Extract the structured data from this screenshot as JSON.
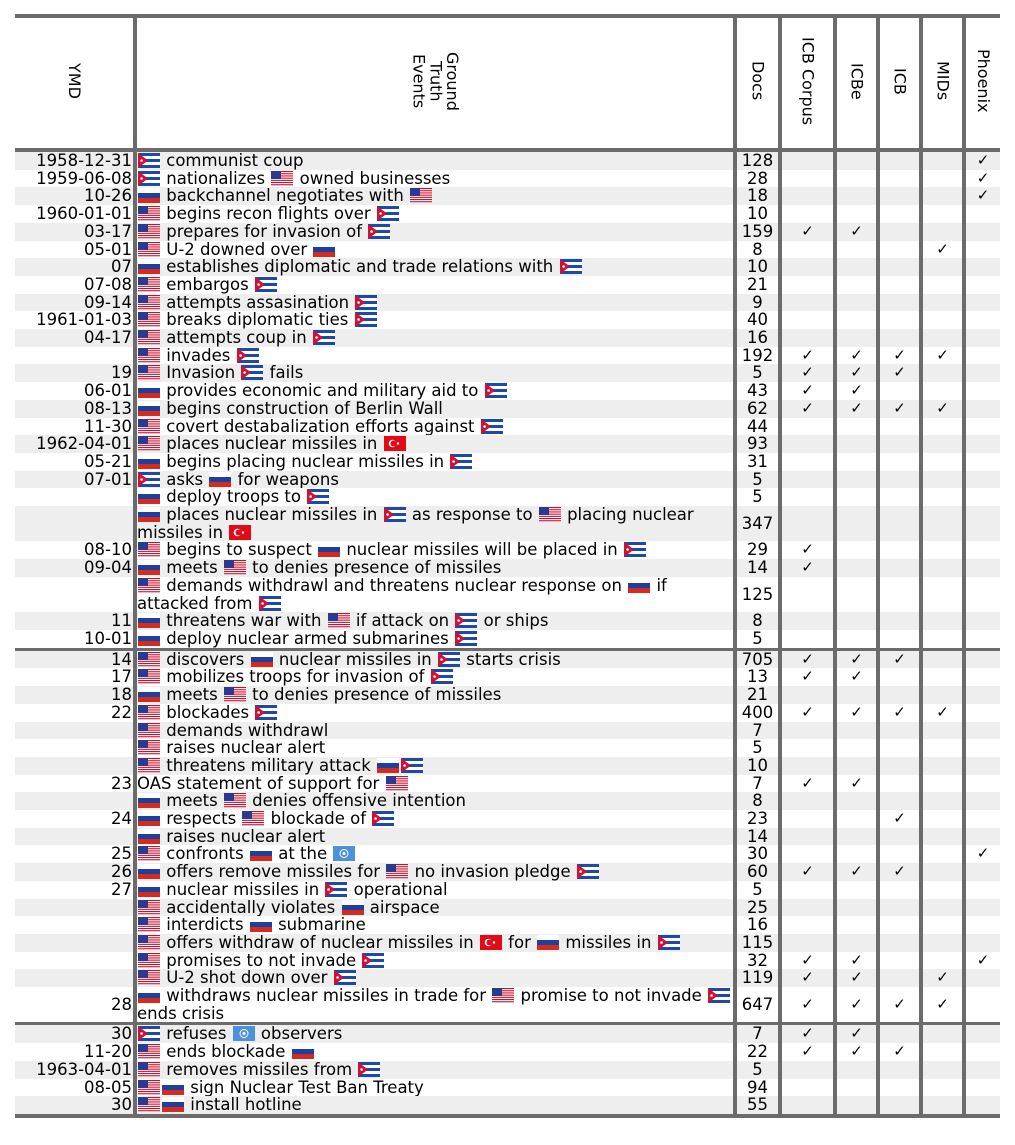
{
  "flags": {
    "US": {
      "name": "us-flag-icon"
    },
    "CU": {
      "name": "cuba-flag-icon"
    },
    "RU": {
      "name": "russia-flag-icon"
    },
    "TR": {
      "name": "turkey-flag-icon"
    },
    "UN": {
      "name": "un-flag-icon"
    }
  },
  "header": {
    "ymd": "YMD",
    "events": [
      "Ground",
      "Truth",
      "Events"
    ],
    "docs": "Docs",
    "icb_corpus": "ICB Corpus",
    "icbe": "ICBe",
    "icb": "ICB",
    "mids": "MIDs",
    "phoenix": "Phoenix"
  },
  "check": "✓",
  "rows": [
    {
      "ymd": "1958-12-31",
      "ev": [
        [
          "f",
          "CU"
        ],
        [
          "t",
          " communist coup"
        ]
      ],
      "docs": "128",
      "c": [
        0,
        0,
        0,
        0,
        1
      ],
      "g": 1
    },
    {
      "ymd": "1959-06-08",
      "ev": [
        [
          "f",
          "CU"
        ],
        [
          "t",
          " nationalizes "
        ],
        [
          "f",
          "US"
        ],
        [
          "t",
          " owned businesses"
        ]
      ],
      "docs": "28",
      "c": [
        0,
        0,
        0,
        0,
        1
      ],
      "g": 0
    },
    {
      "ymd": "10-26",
      "ev": [
        [
          "f",
          "RU"
        ],
        [
          "t",
          " backchannel negotiates with "
        ],
        [
          "f",
          "US"
        ]
      ],
      "docs": "18",
      "c": [
        0,
        0,
        0,
        0,
        1
      ],
      "g": 1
    },
    {
      "ymd": "1960-01-01",
      "ev": [
        [
          "f",
          "US"
        ],
        [
          "t",
          " begins recon flights over "
        ],
        [
          "f",
          "CU"
        ]
      ],
      "docs": "10",
      "c": [
        0,
        0,
        0,
        0,
        0
      ],
      "g": 0
    },
    {
      "ymd": "03-17",
      "ev": [
        [
          "f",
          "US"
        ],
        [
          "t",
          " prepares for invasion of "
        ],
        [
          "f",
          "CU"
        ]
      ],
      "docs": "159",
      "c": [
        1,
        1,
        0,
        0,
        0
      ],
      "g": 1
    },
    {
      "ymd": "05-01",
      "ev": [
        [
          "f",
          "US"
        ],
        [
          "t",
          " U-2 downed over "
        ],
        [
          "f",
          "RU"
        ]
      ],
      "docs": "8",
      "c": [
        0,
        0,
        0,
        1,
        0
      ],
      "g": 0
    },
    {
      "ymd": "07",
      "ev": [
        [
          "f",
          "RU"
        ],
        [
          "t",
          " establishes diplomatic and trade relations with "
        ],
        [
          "f",
          "CU"
        ]
      ],
      "docs": "10",
      "c": [
        0,
        0,
        0,
        0,
        0
      ],
      "g": 1
    },
    {
      "ymd": "07-08",
      "ev": [
        [
          "f",
          "US"
        ],
        [
          "t",
          " embargos "
        ],
        [
          "f",
          "CU"
        ]
      ],
      "docs": "21",
      "c": [
        0,
        0,
        0,
        0,
        0
      ],
      "g": 0
    },
    {
      "ymd": "09-14",
      "ev": [
        [
          "f",
          "US"
        ],
        [
          "t",
          " attempts assasination "
        ],
        [
          "f",
          "CU"
        ]
      ],
      "docs": "9",
      "c": [
        0,
        0,
        0,
        0,
        0
      ],
      "g": 1
    },
    {
      "ymd": "1961-01-03",
      "ev": [
        [
          "f",
          "US"
        ],
        [
          "t",
          " breaks diplomatic ties "
        ],
        [
          "f",
          "CU"
        ]
      ],
      "docs": "40",
      "c": [
        0,
        0,
        0,
        0,
        0
      ],
      "g": 0
    },
    {
      "ymd": "04-17",
      "ev": [
        [
          "f",
          "US"
        ],
        [
          "t",
          " attempts coup in "
        ],
        [
          "f",
          "CU"
        ]
      ],
      "docs": "16",
      "c": [
        0,
        0,
        0,
        0,
        0
      ],
      "g": 1
    },
    {
      "ymd": "",
      "ev": [
        [
          "f",
          "US"
        ],
        [
          "t",
          " invades "
        ],
        [
          "f",
          "CU"
        ]
      ],
      "docs": "192",
      "c": [
        1,
        1,
        1,
        1,
        0
      ],
      "g": 0
    },
    {
      "ymd": "19",
      "ev": [
        [
          "f",
          "US"
        ],
        [
          "t",
          " Invasion "
        ],
        [
          "f",
          "CU"
        ],
        [
          "t",
          " fails"
        ]
      ],
      "docs": "5",
      "c": [
        1,
        1,
        1,
        0,
        0
      ],
      "g": 1
    },
    {
      "ymd": "06-01",
      "ev": [
        [
          "f",
          "RU"
        ],
        [
          "t",
          " provides economic and military aid to "
        ],
        [
          "f",
          "CU"
        ]
      ],
      "docs": "43",
      "c": [
        1,
        1,
        0,
        0,
        0
      ],
      "g": 0
    },
    {
      "ymd": "08-13",
      "ev": [
        [
          "f",
          "RU"
        ],
        [
          "t",
          " begins construction of Berlin Wall"
        ]
      ],
      "docs": "62",
      "c": [
        1,
        1,
        1,
        1,
        0
      ],
      "g": 1
    },
    {
      "ymd": "11-30",
      "ev": [
        [
          "f",
          "US"
        ],
        [
          "t",
          " covert destabalization efforts against "
        ],
        [
          "f",
          "CU"
        ]
      ],
      "docs": "44",
      "c": [
        0,
        0,
        0,
        0,
        0
      ],
      "g": 0
    },
    {
      "ymd": "1962-04-01",
      "ev": [
        [
          "f",
          "US"
        ],
        [
          "t",
          " places nuclear missiles in "
        ],
        [
          "f",
          "TR"
        ]
      ],
      "docs": "93",
      "c": [
        0,
        0,
        0,
        0,
        0
      ],
      "g": 1
    },
    {
      "ymd": "05-21",
      "ev": [
        [
          "f",
          "RU"
        ],
        [
          "t",
          " begins placing nuclear missiles in "
        ],
        [
          "f",
          "CU"
        ]
      ],
      "docs": "31",
      "c": [
        0,
        0,
        0,
        0,
        0
      ],
      "g": 0
    },
    {
      "ymd": "07-01",
      "ev": [
        [
          "f",
          "CU"
        ],
        [
          "t",
          " asks "
        ],
        [
          "f",
          "RU"
        ],
        [
          "t",
          " for weapons"
        ]
      ],
      "docs": "5",
      "c": [
        0,
        0,
        0,
        0,
        0
      ],
      "g": 1
    },
    {
      "ymd": "",
      "ev": [
        [
          "f",
          "RU"
        ],
        [
          "t",
          " deploy troops to "
        ],
        [
          "f",
          "CU"
        ]
      ],
      "docs": "5",
      "c": [
        0,
        0,
        0,
        0,
        0
      ],
      "g": 0
    },
    {
      "ymd": "",
      "tall": 1,
      "ev": [
        [
          "f",
          "RU"
        ],
        [
          "t",
          " places nuclear missiles in "
        ],
        [
          "f",
          "CU"
        ],
        [
          "t",
          " as response to "
        ],
        [
          "f",
          "US"
        ],
        [
          "t",
          " placing nuclear missiles in "
        ],
        [
          "f",
          "TR"
        ]
      ],
      "docs": "347",
      "c": [
        0,
        0,
        0,
        0,
        0
      ],
      "g": 1
    },
    {
      "ymd": "08-10",
      "ev": [
        [
          "f",
          "US"
        ],
        [
          "t",
          " begins to suspect "
        ],
        [
          "f",
          "RU"
        ],
        [
          "t",
          " nuclear missiles will be placed in "
        ],
        [
          "f",
          "CU"
        ]
      ],
      "docs": "29",
      "c": [
        1,
        0,
        0,
        0,
        0
      ],
      "g": 0
    },
    {
      "ymd": "09-04",
      "ev": [
        [
          "f",
          "RU"
        ],
        [
          "t",
          " meets "
        ],
        [
          "f",
          "US"
        ],
        [
          "t",
          " to denies presence of missiles"
        ]
      ],
      "docs": "14",
      "c": [
        1,
        0,
        0,
        0,
        0
      ],
      "g": 1
    },
    {
      "ymd": "",
      "tall": 1,
      "ev": [
        [
          "f",
          "US"
        ],
        [
          "t",
          " demands withdrawl and threatens nuclear response on "
        ],
        [
          "f",
          "RU"
        ],
        [
          "t",
          " if attacked from "
        ],
        [
          "f",
          "CU"
        ]
      ],
      "docs": "125",
      "c": [
        0,
        0,
        0,
        0,
        0
      ],
      "g": 0
    },
    {
      "ymd": "11",
      "ev": [
        [
          "f",
          "RU"
        ],
        [
          "t",
          " threatens war with "
        ],
        [
          "f",
          "US"
        ],
        [
          "t",
          " if attack on "
        ],
        [
          "f",
          "CU"
        ],
        [
          "t",
          " or ships"
        ]
      ],
      "docs": "8",
      "c": [
        0,
        0,
        0,
        0,
        0
      ],
      "g": 1
    },
    {
      "ymd": "10-01",
      "ev": [
        [
          "f",
          "RU"
        ],
        [
          "t",
          " deploy nuclear armed submarines "
        ],
        [
          "f",
          "CU"
        ]
      ],
      "docs": "5",
      "c": [
        0,
        0,
        0,
        0,
        0
      ],
      "g": 0
    },
    {
      "ymd": "14",
      "phase": 1,
      "ev": [
        [
          "f",
          "US"
        ],
        [
          "t",
          " discovers "
        ],
        [
          "f",
          "RU"
        ],
        [
          "t",
          " nuclear missiles in "
        ],
        [
          "f",
          "CU"
        ],
        [
          "t",
          " starts crisis"
        ]
      ],
      "docs": "705",
      "c": [
        1,
        1,
        1,
        0,
        0
      ],
      "g": 1
    },
    {
      "ymd": "17",
      "ev": [
        [
          "f",
          "US"
        ],
        [
          "t",
          " mobilizes troops for invasion of "
        ],
        [
          "f",
          "CU"
        ]
      ],
      "docs": "13",
      "c": [
        1,
        1,
        0,
        0,
        0
      ],
      "g": 0
    },
    {
      "ymd": "18",
      "ev": [
        [
          "f",
          "RU"
        ],
        [
          "t",
          " meets "
        ],
        [
          "f",
          "US"
        ],
        [
          "t",
          " to denies presence of missiles"
        ]
      ],
      "docs": "21",
      "c": [
        0,
        0,
        0,
        0,
        0
      ],
      "g": 1
    },
    {
      "ymd": "22",
      "ev": [
        [
          "f",
          "US"
        ],
        [
          "t",
          " blockades "
        ],
        [
          "f",
          "CU"
        ]
      ],
      "docs": "400",
      "c": [
        1,
        1,
        1,
        1,
        0
      ],
      "g": 0
    },
    {
      "ymd": "",
      "ev": [
        [
          "f",
          "US"
        ],
        [
          "t",
          " demands withdrawl"
        ]
      ],
      "docs": "7",
      "c": [
        0,
        0,
        0,
        0,
        0
      ],
      "g": 1
    },
    {
      "ymd": "",
      "ev": [
        [
          "f",
          "US"
        ],
        [
          "t",
          " raises nuclear alert"
        ]
      ],
      "docs": "5",
      "c": [
        0,
        0,
        0,
        0,
        0
      ],
      "g": 0
    },
    {
      "ymd": "",
      "ev": [
        [
          "f",
          "US"
        ],
        [
          "t",
          " threatens military attack "
        ],
        [
          "f",
          "RU"
        ],
        [
          "f",
          "CU"
        ]
      ],
      "docs": "10",
      "c": [
        0,
        0,
        0,
        0,
        0
      ],
      "g": 1
    },
    {
      "ymd": "23",
      "ev": [
        [
          "t",
          "OAS statement of support for "
        ],
        [
          "f",
          "US"
        ]
      ],
      "docs": "7",
      "c": [
        1,
        1,
        0,
        0,
        0
      ],
      "g": 0
    },
    {
      "ymd": "",
      "ev": [
        [
          "f",
          "RU"
        ],
        [
          "t",
          " meets "
        ],
        [
          "f",
          "US"
        ],
        [
          "t",
          " denies offensive intention"
        ]
      ],
      "docs": "8",
      "c": [
        0,
        0,
        0,
        0,
        0
      ],
      "g": 1
    },
    {
      "ymd": "24",
      "ev": [
        [
          "f",
          "RU"
        ],
        [
          "t",
          " respects "
        ],
        [
          "f",
          "US"
        ],
        [
          "t",
          " blockade of "
        ],
        [
          "f",
          "CU"
        ]
      ],
      "docs": "23",
      "c": [
        0,
        0,
        1,
        0,
        0
      ],
      "g": 0
    },
    {
      "ymd": "",
      "ev": [
        [
          "f",
          "RU"
        ],
        [
          "t",
          " raises nuclear alert"
        ]
      ],
      "docs": "14",
      "c": [
        0,
        0,
        0,
        0,
        0
      ],
      "g": 1
    },
    {
      "ymd": "25",
      "ev": [
        [
          "f",
          "US"
        ],
        [
          "t",
          " confronts "
        ],
        [
          "f",
          "RU"
        ],
        [
          "t",
          " at the "
        ],
        [
          "f",
          "UN"
        ]
      ],
      "docs": "30",
      "c": [
        0,
        0,
        0,
        0,
        1
      ],
      "g": 0
    },
    {
      "ymd": "26",
      "ev": [
        [
          "f",
          "RU"
        ],
        [
          "t",
          " offers remove missiles for "
        ],
        [
          "f",
          "US"
        ],
        [
          "t",
          " no invasion pledge "
        ],
        [
          "f",
          "CU"
        ]
      ],
      "docs": "60",
      "c": [
        1,
        1,
        1,
        0,
        0
      ],
      "g": 1
    },
    {
      "ymd": "27",
      "ev": [
        [
          "f",
          "RU"
        ],
        [
          "t",
          " nuclear missiles in "
        ],
        [
          "f",
          "CU"
        ],
        [
          "t",
          " operational"
        ]
      ],
      "docs": "5",
      "c": [
        0,
        0,
        0,
        0,
        0
      ],
      "g": 0
    },
    {
      "ymd": "",
      "ev": [
        [
          "f",
          "US"
        ],
        [
          "t",
          " accidentally violates "
        ],
        [
          "f",
          "RU"
        ],
        [
          "t",
          " airspace"
        ]
      ],
      "docs": "25",
      "c": [
        0,
        0,
        0,
        0,
        0
      ],
      "g": 1
    },
    {
      "ymd": "",
      "ev": [
        [
          "f",
          "US"
        ],
        [
          "t",
          " interdicts "
        ],
        [
          "f",
          "RU"
        ],
        [
          "t",
          " submarine"
        ]
      ],
      "docs": "16",
      "c": [
        0,
        0,
        0,
        0,
        0
      ],
      "g": 0
    },
    {
      "ymd": "",
      "tall": 1,
      "ev": [
        [
          "f",
          "US"
        ],
        [
          "t",
          " offers withdraw of nuclear missiles in "
        ],
        [
          "f",
          "TR"
        ],
        [
          "t",
          " for "
        ],
        [
          "f",
          "RU"
        ],
        [
          "t",
          " missiles in "
        ],
        [
          "f",
          "CU"
        ]
      ],
      "docs": "115",
      "c": [
        0,
        0,
        0,
        0,
        0
      ],
      "g": 1
    },
    {
      "ymd": "",
      "ev": [
        [
          "f",
          "US"
        ],
        [
          "t",
          " promises to not invade "
        ],
        [
          "f",
          "CU"
        ]
      ],
      "docs": "32",
      "c": [
        1,
        1,
        0,
        0,
        1
      ],
      "g": 0
    },
    {
      "ymd": "",
      "ev": [
        [
          "f",
          "US"
        ],
        [
          "t",
          " U-2 shot down over "
        ],
        [
          "f",
          "CU"
        ]
      ],
      "docs": "119",
      "c": [
        1,
        1,
        0,
        1,
        0
      ],
      "g": 1
    },
    {
      "ymd": "28",
      "tall": 1,
      "ev": [
        [
          "f",
          "RU"
        ],
        [
          "t",
          " withdraws nuclear missiles in trade for "
        ],
        [
          "f",
          "US"
        ],
        [
          "t",
          " promise to not invade "
        ],
        [
          "f",
          "CU"
        ],
        [
          "t",
          " ends crisis"
        ]
      ],
      "docs": "647",
      "c": [
        1,
        1,
        1,
        1,
        0
      ],
      "g": 0
    },
    {
      "ymd": "30",
      "phase": 1,
      "ev": [
        [
          "f",
          "CU"
        ],
        [
          "t",
          " refuses "
        ],
        [
          "f",
          "UN"
        ],
        [
          "t",
          " observers"
        ]
      ],
      "docs": "7",
      "c": [
        1,
        1,
        0,
        0,
        0
      ],
      "g": 1
    },
    {
      "ymd": "11-20",
      "ev": [
        [
          "f",
          "US"
        ],
        [
          "t",
          " ends blockade "
        ],
        [
          "f",
          "RU"
        ]
      ],
      "docs": "22",
      "c": [
        1,
        1,
        1,
        0,
        0
      ],
      "g": 0
    },
    {
      "ymd": "1963-04-01",
      "ev": [
        [
          "f",
          "US"
        ],
        [
          "t",
          " removes missiles from "
        ],
        [
          "f",
          "CU"
        ]
      ],
      "docs": "5",
      "c": [
        0,
        0,
        0,
        0,
        0
      ],
      "g": 1
    },
    {
      "ymd": "08-05",
      "ev": [
        [
          "f",
          "US"
        ],
        [
          "f",
          "RU"
        ],
        [
          "t",
          " sign Nuclear Test Ban Treaty"
        ]
      ],
      "docs": "94",
      "c": [
        0,
        0,
        0,
        0,
        0
      ],
      "g": 0
    },
    {
      "ymd": "30",
      "ev": [
        [
          "f",
          "US"
        ],
        [
          "f",
          "RU"
        ],
        [
          "t",
          " install hotline"
        ]
      ],
      "docs": "55",
      "c": [
        0,
        0,
        0,
        0,
        0
      ],
      "g": 1
    }
  ]
}
